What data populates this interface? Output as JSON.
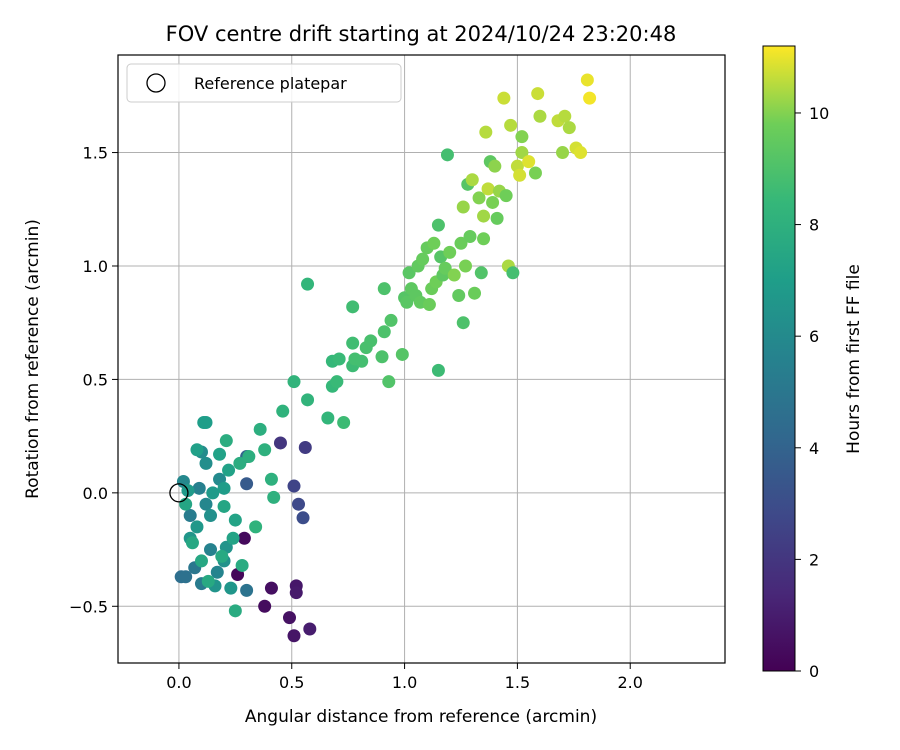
{
  "chart_data": {
    "type": "scatter",
    "title": "FOV centre drift starting at 2024/10/24 23:20:48",
    "xlabel": "Angular distance from reference (arcmin)",
    "ylabel": "Rotation from reference (arcmin)",
    "xlim": [
      -0.27,
      2.42
    ],
    "ylim": [
      -0.75,
      1.93
    ],
    "x_ticks": [
      0.0,
      0.5,
      1.0,
      1.5,
      2.0
    ],
    "x_tick_labels": [
      "0.0",
      "0.5",
      "1.0",
      "1.5",
      "2.0"
    ],
    "y_ticks": [
      -0.5,
      0.0,
      0.5,
      1.0,
      1.5
    ],
    "y_tick_labels": [
      "−0.5",
      "0.0",
      "0.5",
      "1.0",
      "1.5"
    ],
    "grid": true,
    "legend": {
      "placement": "upper-left",
      "entries": [
        {
          "label": "Reference platepar",
          "marker": "open-circle"
        }
      ]
    },
    "reference_point": {
      "x": 0.0,
      "y": 0.0,
      "label": "Reference platepar"
    },
    "colorbar": {
      "label": "Hours from first FF file",
      "range": [
        0,
        11.2
      ],
      "ticks": [
        0,
        2,
        4,
        6,
        8,
        10
      ],
      "tick_labels": [
        "0",
        "2",
        "4",
        "6",
        "8",
        "10"
      ],
      "colormap": "viridis"
    },
    "points": [
      {
        "x": 0.26,
        "y": -0.36,
        "h": 0.2
      },
      {
        "x": 0.29,
        "y": -0.2,
        "h": 0.3
      },
      {
        "x": 0.38,
        "y": -0.5,
        "h": 0.4
      },
      {
        "x": 0.41,
        "y": -0.42,
        "h": 0.5
      },
      {
        "x": 0.49,
        "y": -0.55,
        "h": 0.6
      },
      {
        "x": 0.51,
        "y": -0.63,
        "h": 0.7
      },
      {
        "x": 0.52,
        "y": -0.41,
        "h": 0.8
      },
      {
        "x": 0.52,
        "y": -0.44,
        "h": 0.9
      },
      {
        "x": 0.58,
        "y": -0.6,
        "h": 1.0
      },
      {
        "x": 0.45,
        "y": 0.22,
        "h": 2.0
      },
      {
        "x": 0.56,
        "y": 0.2,
        "h": 2.2
      },
      {
        "x": 0.51,
        "y": 0.03,
        "h": 2.6
      },
      {
        "x": 0.53,
        "y": -0.05,
        "h": 2.8
      },
      {
        "x": 0.55,
        "y": -0.11,
        "h": 3.0
      },
      {
        "x": 0.3,
        "y": 0.04,
        "h": 3.6
      },
      {
        "x": 0.3,
        "y": 0.16,
        "h": 4.0
      },
      {
        "x": 0.01,
        "y": -0.37,
        "h": 4.6
      },
      {
        "x": 0.03,
        "y": -0.37,
        "h": 4.7
      },
      {
        "x": 0.3,
        "y": -0.43,
        "h": 4.8
      },
      {
        "x": 0.07,
        "y": -0.33,
        "h": 5.0
      },
      {
        "x": 0.1,
        "y": -0.4,
        "h": 5.2
      },
      {
        "x": 0.05,
        "y": -0.1,
        "h": 5.3
      },
      {
        "x": 0.09,
        "y": 0.02,
        "h": 5.5
      },
      {
        "x": 0.14,
        "y": -0.25,
        "h": 5.6
      },
      {
        "x": 0.17,
        "y": -0.35,
        "h": 5.7
      },
      {
        "x": 0.12,
        "y": -0.05,
        "h": 5.8
      },
      {
        "x": 0.02,
        "y": 0.05,
        "h": 5.9
      },
      {
        "x": 0.18,
        "y": 0.06,
        "h": 6.0
      },
      {
        "x": 0.1,
        "y": 0.18,
        "h": 6.1
      },
      {
        "x": 0.12,
        "y": 0.13,
        "h": 6.2
      },
      {
        "x": 0.14,
        "y": -0.1,
        "h": 6.3
      },
      {
        "x": 0.2,
        "y": -0.3,
        "h": 6.4
      },
      {
        "x": 0.21,
        "y": -0.24,
        "h": 6.5
      },
      {
        "x": 0.16,
        "y": -0.41,
        "h": 6.5
      },
      {
        "x": 0.23,
        "y": -0.42,
        "h": 6.6
      },
      {
        "x": 0.05,
        "y": -0.2,
        "h": 6.6
      },
      {
        "x": 0.08,
        "y": -0.15,
        "h": 6.7
      },
      {
        "x": 0.04,
        "y": 0.01,
        "h": 6.8
      },
      {
        "x": 0.15,
        "y": 0.0,
        "h": 6.8
      },
      {
        "x": 0.2,
        "y": 0.02,
        "h": 6.9
      },
      {
        "x": 0.11,
        "y": 0.31,
        "h": 7.0
      },
      {
        "x": 0.12,
        "y": 0.31,
        "h": 7.0
      },
      {
        "x": 0.08,
        "y": 0.19,
        "h": 7.1
      },
      {
        "x": 0.18,
        "y": 0.17,
        "h": 7.2
      },
      {
        "x": 0.22,
        "y": 0.1,
        "h": 7.2
      },
      {
        "x": 0.25,
        "y": -0.12,
        "h": 7.3
      },
      {
        "x": 0.24,
        "y": -0.2,
        "h": 7.3
      },
      {
        "x": 0.2,
        "y": -0.06,
        "h": 7.4
      },
      {
        "x": 0.03,
        "y": -0.05,
        "h": 7.4
      },
      {
        "x": 0.06,
        "y": -0.22,
        "h": 7.5
      },
      {
        "x": 0.1,
        "y": -0.3,
        "h": 7.5
      },
      {
        "x": 0.13,
        "y": -0.39,
        "h": 7.6
      },
      {
        "x": 0.19,
        "y": -0.28,
        "h": 7.6
      },
      {
        "x": 0.28,
        "y": -0.32,
        "h": 7.7
      },
      {
        "x": 0.25,
        "y": -0.52,
        "h": 7.7
      },
      {
        "x": 0.21,
        "y": 0.23,
        "h": 7.8
      },
      {
        "x": 0.27,
        "y": 0.13,
        "h": 7.8
      },
      {
        "x": 0.31,
        "y": 0.16,
        "h": 7.9
      },
      {
        "x": 0.36,
        "y": 0.28,
        "h": 7.9
      },
      {
        "x": 0.38,
        "y": 0.19,
        "h": 8.0
      },
      {
        "x": 0.41,
        "y": 0.06,
        "h": 8.0
      },
      {
        "x": 0.42,
        "y": -0.02,
        "h": 8.0
      },
      {
        "x": 0.34,
        "y": -0.15,
        "h": 8.1
      },
      {
        "x": 0.46,
        "y": 0.36,
        "h": 8.1
      },
      {
        "x": 0.51,
        "y": 0.49,
        "h": 8.2
      },
      {
        "x": 0.57,
        "y": 0.41,
        "h": 8.2
      },
      {
        "x": 0.57,
        "y": 0.92,
        "h": 8.3
      },
      {
        "x": 0.66,
        "y": 0.33,
        "h": 8.3
      },
      {
        "x": 0.68,
        "y": 0.47,
        "h": 8.4
      },
      {
        "x": 0.68,
        "y": 0.58,
        "h": 8.4
      },
      {
        "x": 0.7,
        "y": 0.49,
        "h": 8.5
      },
      {
        "x": 0.71,
        "y": 0.59,
        "h": 8.5
      },
      {
        "x": 0.73,
        "y": 0.31,
        "h": 8.6
      },
      {
        "x": 0.77,
        "y": 0.56,
        "h": 8.6
      },
      {
        "x": 0.77,
        "y": 0.66,
        "h": 8.7
      },
      {
        "x": 0.77,
        "y": 0.82,
        "h": 8.7
      },
      {
        "x": 0.78,
        "y": 0.59,
        "h": 8.8
      },
      {
        "x": 0.81,
        "y": 0.58,
        "h": 8.8
      },
      {
        "x": 0.83,
        "y": 0.64,
        "h": 8.9
      },
      {
        "x": 0.85,
        "y": 0.67,
        "h": 8.9
      },
      {
        "x": 0.9,
        "y": 0.6,
        "h": 9.0
      },
      {
        "x": 0.91,
        "y": 0.71,
        "h": 9.0
      },
      {
        "x": 0.91,
        "y": 0.9,
        "h": 9.0
      },
      {
        "x": 0.93,
        "y": 0.49,
        "h": 9.1
      },
      {
        "x": 0.94,
        "y": 0.76,
        "h": 9.1
      },
      {
        "x": 0.99,
        "y": 0.61,
        "h": 9.2
      },
      {
        "x": 1.0,
        "y": 0.86,
        "h": 9.2
      },
      {
        "x": 1.01,
        "y": 0.84,
        "h": 9.3
      },
      {
        "x": 1.02,
        "y": 0.97,
        "h": 9.3
      },
      {
        "x": 1.03,
        "y": 0.9,
        "h": 9.4
      },
      {
        "x": 1.05,
        "y": 0.87,
        "h": 9.4
      },
      {
        "x": 1.06,
        "y": 1.0,
        "h": 9.5
      },
      {
        "x": 1.07,
        "y": 0.84,
        "h": 9.5
      },
      {
        "x": 1.08,
        "y": 1.03,
        "h": 9.6
      },
      {
        "x": 1.1,
        "y": 1.08,
        "h": 9.6
      },
      {
        "x": 1.11,
        "y": 0.83,
        "h": 9.7
      },
      {
        "x": 1.12,
        "y": 0.9,
        "h": 9.7
      },
      {
        "x": 1.13,
        "y": 1.1,
        "h": 9.8
      },
      {
        "x": 1.14,
        "y": 0.93,
        "h": 9.8
      },
      {
        "x": 1.15,
        "y": 0.54,
        "h": 8.6
      },
      {
        "x": 1.15,
        "y": 1.18,
        "h": 9.0
      },
      {
        "x": 1.16,
        "y": 1.04,
        "h": 9.2
      },
      {
        "x": 1.17,
        "y": 0.96,
        "h": 9.4
      },
      {
        "x": 1.18,
        "y": 0.99,
        "h": 9.6
      },
      {
        "x": 1.19,
        "y": 1.49,
        "h": 8.8
      },
      {
        "x": 1.2,
        "y": 1.06,
        "h": 9.8
      },
      {
        "x": 1.22,
        "y": 0.96,
        "h": 10.0
      },
      {
        "x": 1.24,
        "y": 0.87,
        "h": 9.5
      },
      {
        "x": 1.25,
        "y": 1.1,
        "h": 9.7
      },
      {
        "x": 1.26,
        "y": 0.75,
        "h": 9.0
      },
      {
        "x": 1.26,
        "y": 1.26,
        "h": 10.2
      },
      {
        "x": 1.27,
        "y": 1.0,
        "h": 9.9
      },
      {
        "x": 1.28,
        "y": 1.36,
        "h": 9.2
      },
      {
        "x": 1.29,
        "y": 1.13,
        "h": 9.6
      },
      {
        "x": 1.3,
        "y": 1.38,
        "h": 10.4
      },
      {
        "x": 1.31,
        "y": 0.88,
        "h": 9.7
      },
      {
        "x": 1.33,
        "y": 1.3,
        "h": 10.0
      },
      {
        "x": 1.34,
        "y": 0.97,
        "h": 9.1
      },
      {
        "x": 1.35,
        "y": 1.12,
        "h": 9.8
      },
      {
        "x": 1.35,
        "y": 1.22,
        "h": 10.3
      },
      {
        "x": 1.36,
        "y": 1.59,
        "h": 10.5
      },
      {
        "x": 1.37,
        "y": 1.34,
        "h": 10.6
      },
      {
        "x": 1.38,
        "y": 1.46,
        "h": 9.4
      },
      {
        "x": 1.39,
        "y": 1.28,
        "h": 9.9
      },
      {
        "x": 1.4,
        "y": 1.44,
        "h": 10.1
      },
      {
        "x": 1.41,
        "y": 1.21,
        "h": 9.6
      },
      {
        "x": 1.42,
        "y": 1.33,
        "h": 10.2
      },
      {
        "x": 1.44,
        "y": 1.74,
        "h": 10.7
      },
      {
        "x": 1.45,
        "y": 1.31,
        "h": 9.8
      },
      {
        "x": 1.46,
        "y": 1.0,
        "h": 10.4
      },
      {
        "x": 1.47,
        "y": 1.62,
        "h": 10.5
      },
      {
        "x": 1.48,
        "y": 0.97,
        "h": 8.8
      },
      {
        "x": 1.5,
        "y": 1.44,
        "h": 10.6
      },
      {
        "x": 1.51,
        "y": 1.4,
        "h": 10.8
      },
      {
        "x": 1.52,
        "y": 1.5,
        "h": 10.3
      },
      {
        "x": 1.52,
        "y": 1.57,
        "h": 10.0
      },
      {
        "x": 1.55,
        "y": 1.46,
        "h": 10.9
      },
      {
        "x": 1.58,
        "y": 1.41,
        "h": 9.9
      },
      {
        "x": 1.59,
        "y": 1.76,
        "h": 10.7
      },
      {
        "x": 1.6,
        "y": 1.66,
        "h": 10.4
      },
      {
        "x": 1.68,
        "y": 1.64,
        "h": 10.6
      },
      {
        "x": 1.7,
        "y": 1.5,
        "h": 10.2
      },
      {
        "x": 1.71,
        "y": 1.66,
        "h": 10.5
      },
      {
        "x": 1.73,
        "y": 1.61,
        "h": 10.4
      },
      {
        "x": 1.76,
        "y": 1.52,
        "h": 10.8
      },
      {
        "x": 1.78,
        "y": 1.5,
        "h": 10.9
      },
      {
        "x": 1.81,
        "y": 1.82,
        "h": 11.0
      },
      {
        "x": 1.82,
        "y": 1.74,
        "h": 11.1
      }
    ]
  }
}
